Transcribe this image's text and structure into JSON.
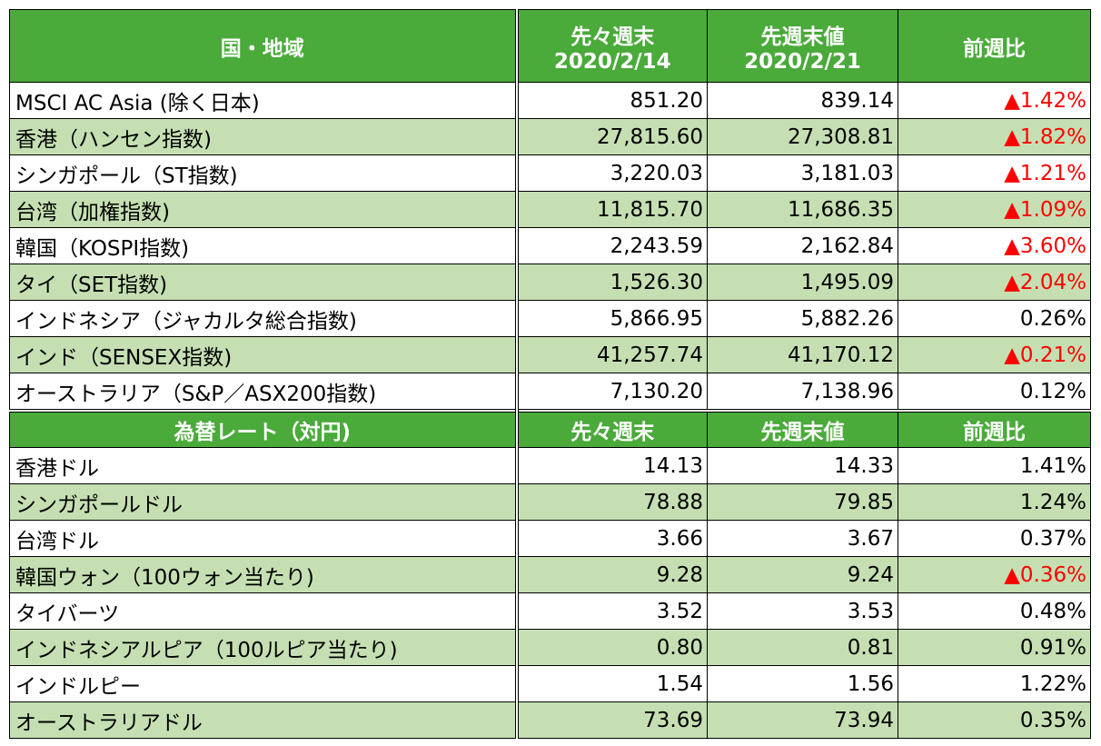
{
  "table1": {
    "header": [
      "国・地域",
      [
        "先々週末",
        "2020/2/14"
      ],
      [
        "先週末値",
        "2020/2/21"
      ],
      "前週比"
    ],
    "rows": [
      [
        "MSCI AC Asia (除く日本)",
        "851.20",
        "839.14",
        "▲1.42%"
      ],
      [
        "香港（ハンセン指数)",
        "27,815.60",
        "27,308.81",
        "▲1.82%"
      ],
      [
        "シンガポール（ST指数)",
        "3,220.03",
        "3,181.03",
        "▲1.21%"
      ],
      [
        "台湾（加権指数)",
        "11,815.70",
        "11,686.35",
        "▲1.09%"
      ],
      [
        "韓国（KOSPI指数)",
        "2,243.59",
        "2,162.84",
        "▲3.60%"
      ],
      [
        "タイ（SET指数)",
        "1,526.30",
        "1,495.09",
        "▲2.04%"
      ],
      [
        "インドネシア（ジャカルタ総合指数)",
        "5,866.95",
        "5,882.26",
        "0.26%"
      ],
      [
        "インド（SENSEX指数)",
        "41,257.74",
        "41,170.12",
        "▲0.21%"
      ],
      [
        "オーストラリア（S&P／ASX200指数)",
        "7,130.20",
        "7,138.96",
        "0.12%"
      ]
    ]
  },
  "table2": {
    "header": [
      "為替レート（対円)",
      "先々週末",
      "先週末値",
      "前週比"
    ],
    "rows": [
      [
        "香港ドル",
        "14.13",
        "14.33",
        "1.41%"
      ],
      [
        "シンガポールドル",
        "78.88",
        "79.85",
        "1.24%"
      ],
      [
        "台湾ドル",
        "3.66",
        "3.67",
        "0.37%"
      ],
      [
        "韓国ウォン（100ウォン当たり)",
        "9.28",
        "9.24",
        "▲0.36%"
      ],
      [
        "タイバーツ",
        "3.52",
        "3.53",
        "0.48%"
      ],
      [
        "インドネシアルピア（100ルピア当たり)",
        "0.80",
        "0.81",
        "0.91%"
      ],
      [
        "インドルピー",
        "1.54",
        "1.56",
        "1.22%"
      ],
      [
        "オーストラリアドル",
        "73.69",
        "73.94",
        "0.35%"
      ]
    ]
  }
}
